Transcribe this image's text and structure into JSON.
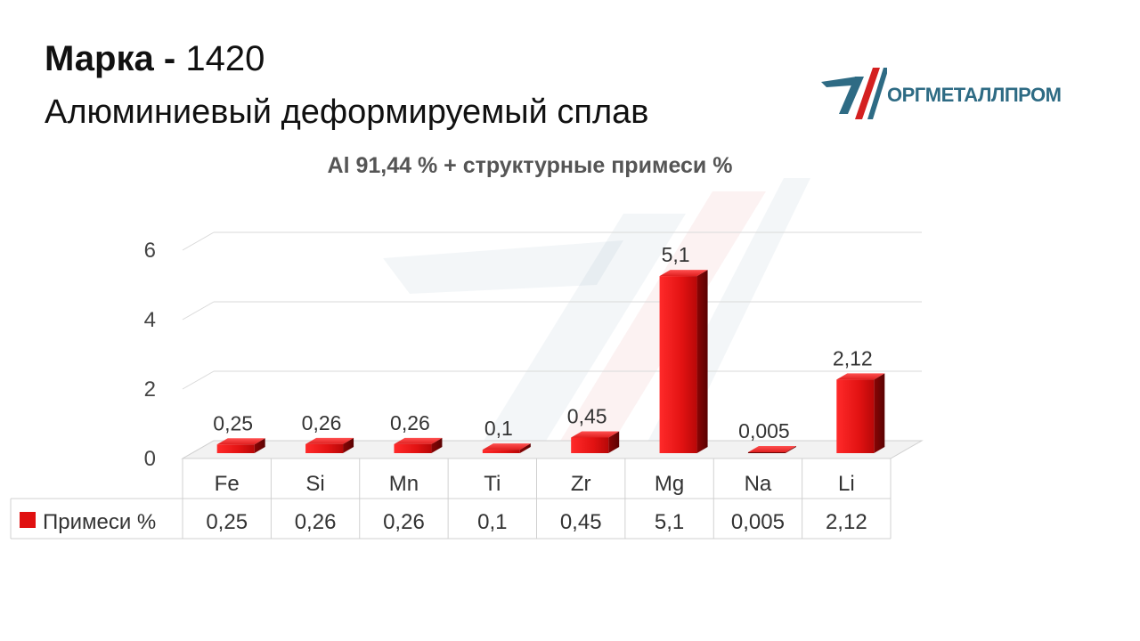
{
  "header": {
    "brand_label": "Марка",
    "separator": "-",
    "grade": "1420",
    "subtitle": "Алюминиевый деформируемый сплав"
  },
  "logo": {
    "text": "ОРГМЕТАЛЛПРОМ"
  },
  "chart_data": {
    "type": "bar",
    "title": "Al 91,44 % + структурные примеси %",
    "categories": [
      "Fe",
      "Si",
      "Mn",
      "Ti",
      "Zr",
      "Mg",
      "Na",
      "Li"
    ],
    "series": [
      {
        "name": "Примеси %",
        "values": [
          0.25,
          0.26,
          0.26,
          0.1,
          0.45,
          5.1,
          0.005,
          2.12
        ]
      }
    ],
    "value_labels": [
      "0,25",
      "0,26",
      "0,26",
      "0,1",
      "0,45",
      "5,1",
      "0,005",
      "2,12"
    ],
    "yticks": [
      "0",
      "2",
      "4",
      "6"
    ],
    "ylim": [
      0,
      6
    ],
    "grid": true,
    "legend": "data-table",
    "bar_color": "#e01010"
  }
}
